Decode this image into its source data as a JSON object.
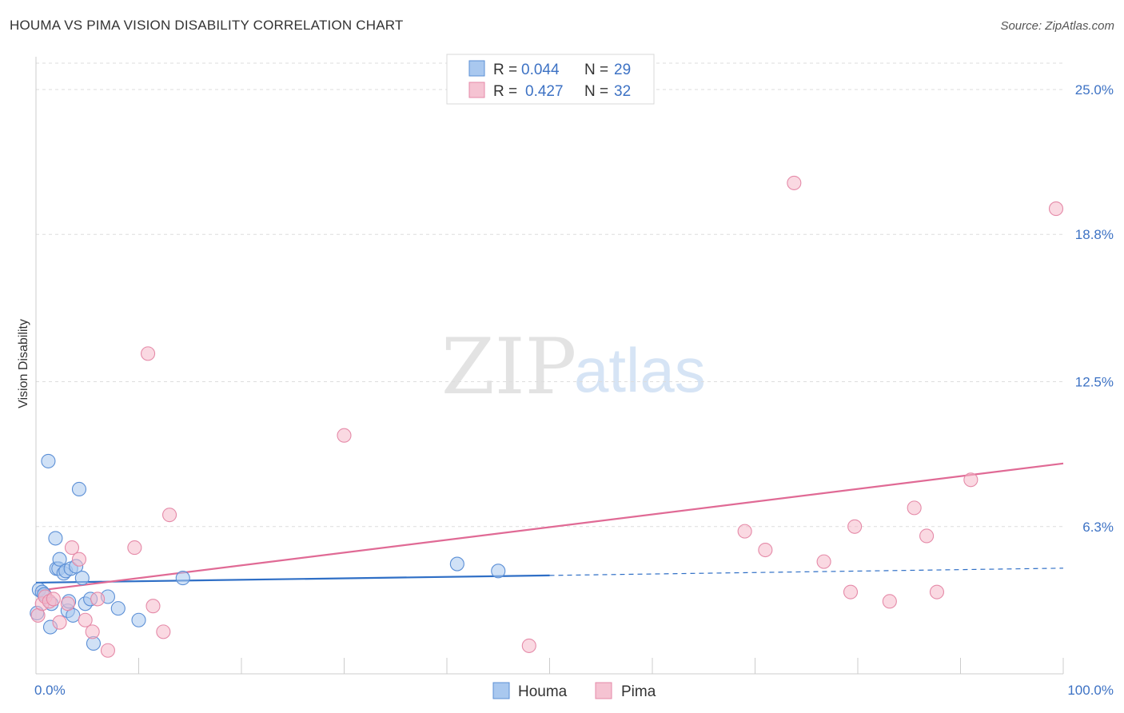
{
  "title": "HOUMA VS PIMA VISION DISABILITY CORRELATION CHART",
  "source": "Source: ZipAtlas.com",
  "watermark": {
    "zip": "ZIP",
    "atlas": "atlas"
  },
  "colors": {
    "houma_fill": "#a9c8ef",
    "houma_stroke": "#5b8fd6",
    "houma_line": "#2f6fc6",
    "pima_fill": "#f5b9cb",
    "pima_stroke": "#e58aa8",
    "pima_line": "#e06a95",
    "tick_text": "#3d72c4",
    "grid": "#dddddd"
  },
  "legend": {
    "r_label": "R =",
    "n_label": "N =",
    "items": [
      {
        "name": "Houma",
        "r": "0.044",
        "n": "29"
      },
      {
        "name": "Pima",
        "r": "0.427",
        "n": "32"
      }
    ]
  },
  "chart_data": {
    "type": "scatter",
    "title": "HOUMA VS PIMA VISION DISABILITY CORRELATION CHART",
    "xlabel": "",
    "ylabel": "Vision Disability",
    "xlim": [
      0,
      100
    ],
    "ylim": [
      0,
      26.4
    ],
    "x_tick_labels": [
      {
        "value": 0,
        "label": "0.0%"
      },
      {
        "value": 100,
        "label": "100.0%"
      }
    ],
    "y_ticks": [
      {
        "value": 6.3,
        "label": "6.3%"
      },
      {
        "value": 12.5,
        "label": "12.5%"
      },
      {
        "value": 18.8,
        "label": "18.8%"
      },
      {
        "value": 25.0,
        "label": "25.0%"
      }
    ],
    "grid": true,
    "legend_position": "top-center",
    "series": [
      {
        "name": "Houma",
        "r": 0.044,
        "n": 29,
        "points": [
          [
            0.3,
            3.6
          ],
          [
            0.6,
            3.5
          ],
          [
            0.8,
            3.4
          ],
          [
            1.2,
            9.1
          ],
          [
            1.4,
            2.0
          ],
          [
            1.5,
            3.0
          ],
          [
            1.9,
            5.8
          ],
          [
            2.0,
            4.5
          ],
          [
            2.2,
            4.5
          ],
          [
            2.3,
            4.9
          ],
          [
            2.7,
            4.3
          ],
          [
            2.9,
            4.4
          ],
          [
            3.1,
            2.7
          ],
          [
            3.2,
            3.1
          ],
          [
            3.4,
            4.5
          ],
          [
            3.6,
            2.5
          ],
          [
            3.9,
            4.6
          ],
          [
            4.2,
            7.9
          ],
          [
            4.5,
            4.1
          ],
          [
            4.8,
            3.0
          ],
          [
            5.3,
            3.2
          ],
          [
            5.6,
            1.3
          ],
          [
            7.0,
            3.3
          ],
          [
            8.0,
            2.8
          ],
          [
            10.0,
            2.3
          ],
          [
            14.3,
            4.1
          ],
          [
            41.0,
            4.7
          ],
          [
            45.0,
            4.4
          ],
          [
            0.1,
            2.6
          ]
        ],
        "trend": {
          "x": [
            0,
            100
          ],
          "y": [
            3.9,
            4.52
          ],
          "solid_until_x": 50
        }
      },
      {
        "name": "Pima",
        "r": 0.427,
        "n": 32,
        "points": [
          [
            0.2,
            2.5
          ],
          [
            0.6,
            3.0
          ],
          [
            0.9,
            3.3
          ],
          [
            1.3,
            3.1
          ],
          [
            1.7,
            3.2
          ],
          [
            2.3,
            2.2
          ],
          [
            3.1,
            3.0
          ],
          [
            3.5,
            5.4
          ],
          [
            4.2,
            4.9
          ],
          [
            4.8,
            2.3
          ],
          [
            5.5,
            1.8
          ],
          [
            6.0,
            3.2
          ],
          [
            7.0,
            1.0
          ],
          [
            9.6,
            5.4
          ],
          [
            10.9,
            13.7
          ],
          [
            11.4,
            2.9
          ],
          [
            12.4,
            1.8
          ],
          [
            13.0,
            6.8
          ],
          [
            30.0,
            10.2
          ],
          [
            48.0,
            1.2
          ],
          [
            69.0,
            6.1
          ],
          [
            71.0,
            5.3
          ],
          [
            73.8,
            21.0
          ],
          [
            76.7,
            4.8
          ],
          [
            79.3,
            3.5
          ],
          [
            79.7,
            6.3
          ],
          [
            83.1,
            3.1
          ],
          [
            85.5,
            7.1
          ],
          [
            86.7,
            5.9
          ],
          [
            87.7,
            3.5
          ],
          [
            91.0,
            8.3
          ],
          [
            99.3,
            19.9
          ]
        ],
        "trend": {
          "x": [
            0,
            100
          ],
          "y": [
            3.55,
            9.0
          ],
          "solid_until_x": 100
        }
      }
    ]
  }
}
